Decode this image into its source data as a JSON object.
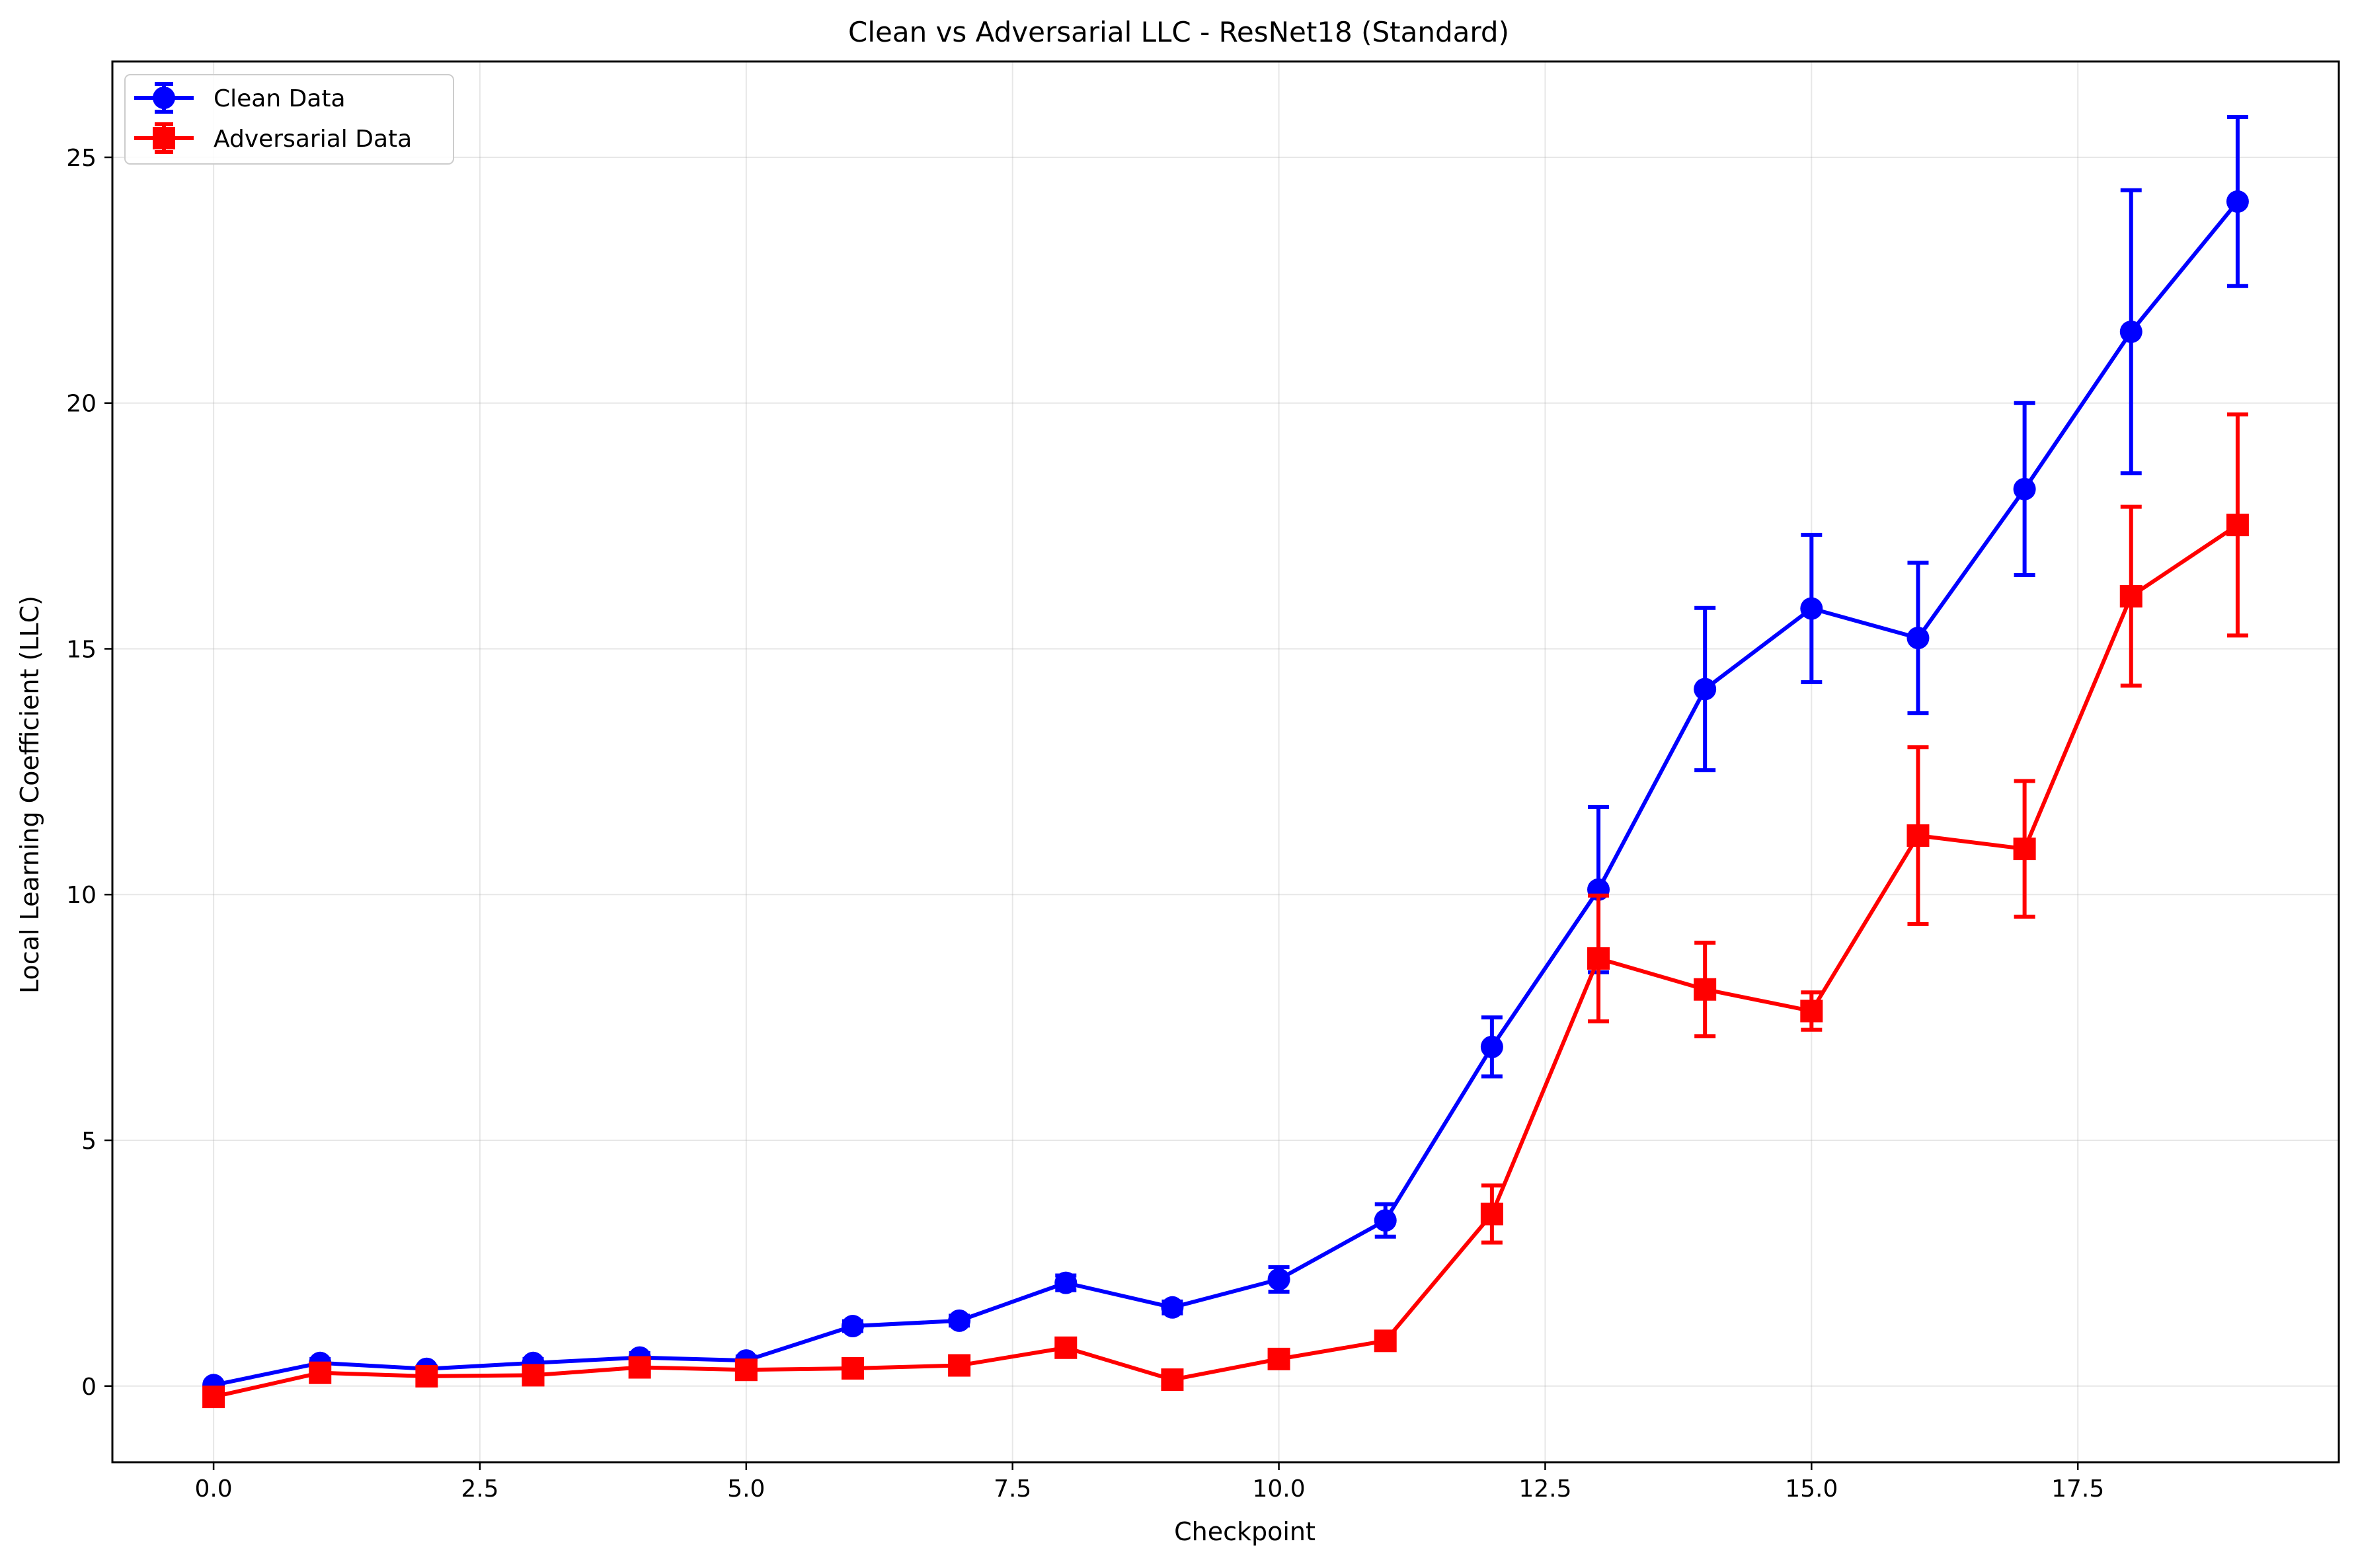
{
  "chart_data": {
    "type": "line",
    "title": "Clean vs Adversarial LLC - ResNet18 (Standard)",
    "xlabel": "Checkpoint",
    "ylabel": "Local Learning Coefficient (LLC)",
    "xlim": [
      -0.95,
      19.95
    ],
    "ylim": [
      -1.55,
      26.95
    ],
    "xticks": [
      0,
      2.5,
      5,
      7.5,
      10,
      12.5,
      15,
      17.5
    ],
    "xtick_labels": [
      "0.0",
      "2.5",
      "5.0",
      "7.5",
      "10.0",
      "12.5",
      "15.0",
      "17.5"
    ],
    "yticks": [
      0,
      5,
      10,
      15,
      20,
      25
    ],
    "ytick_labels": [
      "0",
      "5",
      "10",
      "15",
      "20",
      "25"
    ],
    "grid": true,
    "legend_position": "top-left",
    "x": [
      0,
      1,
      2,
      3,
      4,
      5,
      6,
      7,
      8,
      9,
      10,
      11,
      12,
      13,
      14,
      15,
      16,
      17,
      18,
      19
    ],
    "series": [
      {
        "name": "Clean Data",
        "color": "#0000ff",
        "marker": "circle",
        "values": [
          0.02,
          0.47,
          0.35,
          0.47,
          0.58,
          0.52,
          1.22,
          1.33,
          2.1,
          1.6,
          2.17,
          3.37,
          6.9,
          10.1,
          14.18,
          15.82,
          15.22,
          18.25,
          21.45,
          24.1
        ],
        "errors": [
          0.05,
          0.08,
          0.06,
          0.08,
          0.09,
          0.08,
          0.1,
          0.1,
          0.15,
          0.12,
          0.25,
          0.33,
          0.6,
          1.68,
          1.65,
          1.5,
          1.53,
          1.75,
          2.88,
          1.72
        ]
      },
      {
        "name": "Adversarial Data",
        "color": "#ff0000",
        "marker": "square",
        "values": [
          -0.22,
          0.27,
          0.2,
          0.22,
          0.38,
          0.33,
          0.36,
          0.42,
          0.78,
          0.13,
          0.55,
          0.92,
          3.5,
          8.7,
          8.07,
          7.63,
          11.2,
          10.93,
          16.07,
          17.52
        ],
        "errors": [
          0.05,
          0.06,
          0.05,
          0.06,
          0.07,
          0.06,
          0.07,
          0.08,
          0.1,
          0.08,
          0.12,
          0.12,
          0.58,
          1.28,
          0.95,
          0.38,
          1.8,
          1.38,
          1.82,
          2.25
        ]
      }
    ]
  }
}
